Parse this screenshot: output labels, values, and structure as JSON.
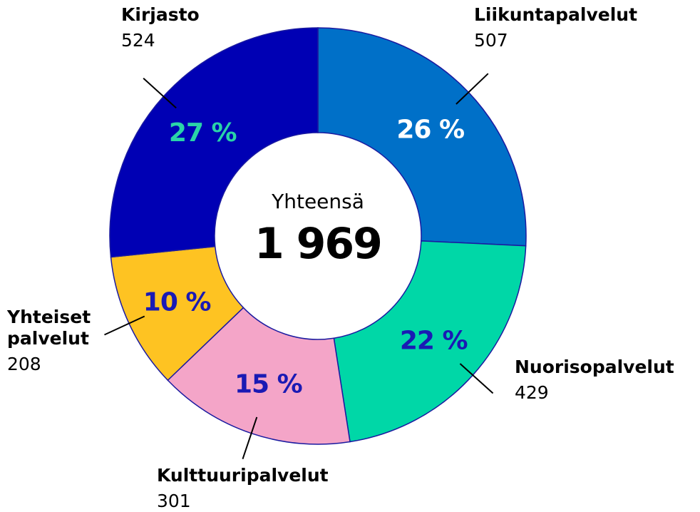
{
  "chart_data": {
    "type": "donut",
    "categories": [
      "Liikuntapalvelut",
      "Nuorisopalvelut",
      "Kulttuuripalvelut",
      "Yhteiset palvelut",
      "Kirjasto"
    ],
    "values": [
      507,
      429,
      301,
      208,
      524
    ],
    "percent_labels": [
      "26 %",
      "22 %",
      "15 %",
      "10 %",
      "27 %"
    ],
    "colors": [
      "#0070c8",
      "#00d7a7",
      "#f4a5c8",
      "#fec322",
      "#0000b4"
    ],
    "center_text": [
      "Yhteensä",
      "1 969"
    ]
  }
}
